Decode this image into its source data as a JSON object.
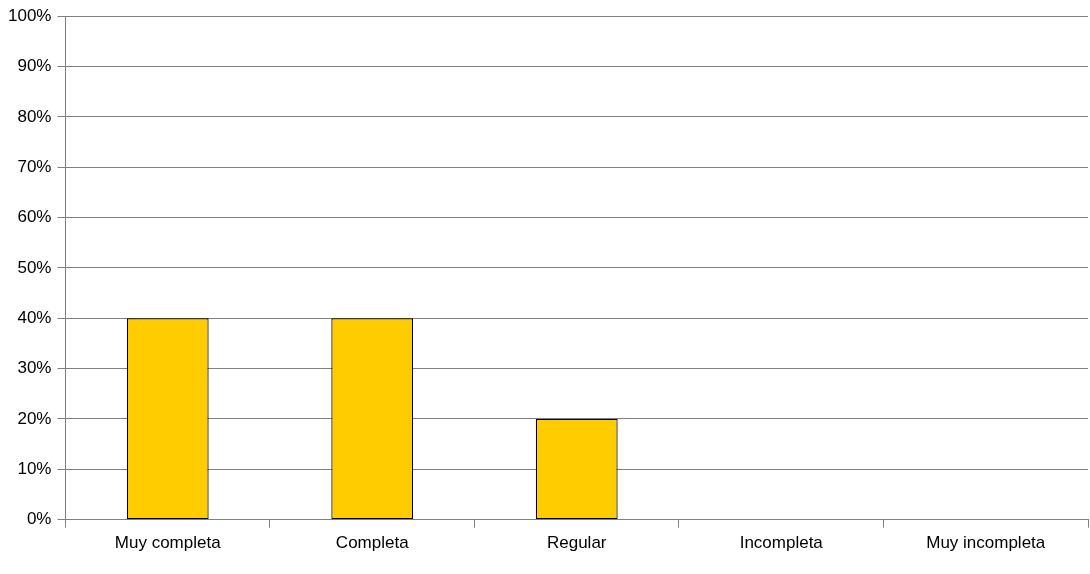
{
  "chart_data": {
    "type": "bar",
    "categories": [
      "Muy completa",
      "Completa",
      "Regular",
      "Incompleta",
      "Muy incompleta"
    ],
    "values": [
      40,
      40,
      20,
      0,
      0
    ],
    "color": "#ffcc00",
    "ylim": [
      0,
      100
    ],
    "yticks": [
      {
        "value": 0,
        "label": "0%"
      },
      {
        "value": 10,
        "label": "10%"
      },
      {
        "value": 20,
        "label": "20%"
      },
      {
        "value": 30,
        "label": "30%"
      },
      {
        "value": 40,
        "label": "40%"
      },
      {
        "value": 50,
        "label": "50%"
      },
      {
        "value": 60,
        "label": "60%"
      },
      {
        "value": 70,
        "label": "70%"
      },
      {
        "value": 80,
        "label": "80%"
      },
      {
        "value": 90,
        "label": "90%"
      },
      {
        "value": 100,
        "label": "100%"
      }
    ],
    "grid": "y"
  }
}
